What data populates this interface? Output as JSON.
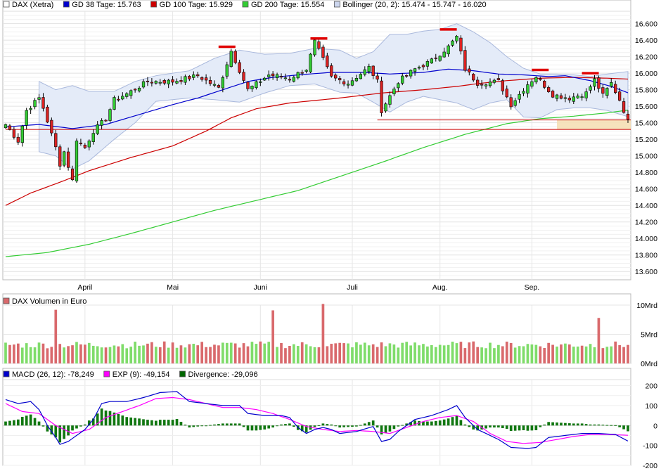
{
  "chart_data": [
    {
      "type": "candlestick",
      "panel": "price",
      "legend": [
        {
          "label": "DAX (Xetra)",
          "color": "#ffffff"
        },
        {
          "label": "GD 38 Tage: 15.763",
          "color": "#0000cc"
        },
        {
          "label": "GD 100 Tage: 15.929",
          "color": "#cc0000"
        },
        {
          "label": "GD 200 Tage: 15.554",
          "color": "#33cc33"
        },
        {
          "label": "Bollinger (20, 2): 15.474 - 15.747 - 16.020",
          "color": "#ccd6ee"
        }
      ],
      "ylim": [
        13500,
        16750
      ],
      "y_ticks": [
        "16.600",
        "16.400",
        "16.200",
        "16.000",
        "15.800",
        "15.600",
        "15.400",
        "15.200",
        "15.000",
        "14.800",
        "14.600",
        "14.400",
        "14.200",
        "14.000",
        "13.800",
        "13.600"
      ],
      "y_tick_values": [
        16600,
        16400,
        16200,
        16000,
        15800,
        15600,
        15400,
        15200,
        15000,
        14800,
        14600,
        14400,
        14200,
        14000,
        13800,
        13600
      ],
      "x_labels": [
        "April",
        "Mai",
        "Juni",
        "Juli",
        "Aug.",
        "Sep."
      ],
      "x_label_day_index": [
        19,
        40,
        61,
        83,
        104,
        126
      ],
      "n_days": 150,
      "close_anchors": [
        [
          0,
          15380
        ],
        [
          3,
          15180
        ],
        [
          5,
          15550
        ],
        [
          8,
          15700
        ],
        [
          9,
          15580
        ],
        [
          12,
          15100
        ],
        [
          13,
          14900
        ],
        [
          14,
          15050
        ],
        [
          16,
          14700
        ],
        [
          17,
          15200
        ],
        [
          19,
          15100
        ],
        [
          21,
          15300
        ],
        [
          24,
          15450
        ],
        [
          26,
          15680
        ],
        [
          29,
          15750
        ],
        [
          34,
          15900
        ],
        [
          40,
          15900
        ],
        [
          46,
          15970
        ],
        [
          51,
          15820
        ],
        [
          54,
          16270
        ],
        [
          58,
          15800
        ],
        [
          63,
          15980
        ],
        [
          68,
          15940
        ],
        [
          72,
          16050
        ],
        [
          74,
          16380
        ],
        [
          78,
          15950
        ],
        [
          82,
          15880
        ],
        [
          87,
          16070
        ],
        [
          89,
          15900
        ],
        [
          90,
          15550
        ],
        [
          94,
          15900
        ],
        [
          98,
          16050
        ],
        [
          102,
          16150
        ],
        [
          106,
          16320
        ],
        [
          108,
          16440
        ],
        [
          110,
          16050
        ],
        [
          113,
          15880
        ],
        [
          118,
          15900
        ],
        [
          121,
          15620
        ],
        [
          125,
          15870
        ],
        [
          127,
          15960
        ],
        [
          131,
          15740
        ],
        [
          135,
          15700
        ],
        [
          139,
          15760
        ],
        [
          141,
          15920
        ],
        [
          143,
          15730
        ],
        [
          145,
          15880
        ],
        [
          147,
          15680
        ],
        [
          149,
          15420
        ]
      ],
      "ma38_anchors": [
        [
          0,
          15350
        ],
        [
          8,
          15380
        ],
        [
          16,
          15330
        ],
        [
          24,
          15380
        ],
        [
          32,
          15500
        ],
        [
          40,
          15620
        ],
        [
          46,
          15700
        ],
        [
          52,
          15800
        ],
        [
          58,
          15900
        ],
        [
          64,
          15950
        ],
        [
          70,
          15980
        ],
        [
          78,
          16010
        ],
        [
          86,
          16010
        ],
        [
          92,
          15990
        ],
        [
          100,
          16010
        ],
        [
          106,
          16050
        ],
        [
          112,
          16030
        ],
        [
          118,
          15990
        ],
        [
          124,
          15980
        ],
        [
          130,
          15960
        ],
        [
          134,
          15970
        ],
        [
          140,
          15910
        ],
        [
          145,
          15840
        ],
        [
          149,
          15763
        ]
      ],
      "ma100_anchors": [
        [
          0,
          14400
        ],
        [
          6,
          14550
        ],
        [
          14,
          14700
        ],
        [
          20,
          14820
        ],
        [
          30,
          14980
        ],
        [
          40,
          15120
        ],
        [
          48,
          15300
        ],
        [
          54,
          15460
        ],
        [
          60,
          15570
        ],
        [
          68,
          15640
        ],
        [
          80,
          15700
        ],
        [
          90,
          15760
        ],
        [
          100,
          15800
        ],
        [
          108,
          15840
        ],
        [
          114,
          15880
        ],
        [
          120,
          15910
        ],
        [
          128,
          15940
        ],
        [
          136,
          15950
        ],
        [
          144,
          15940
        ],
        [
          149,
          15929
        ]
      ],
      "ma200_anchors": [
        [
          0,
          13780
        ],
        [
          10,
          13830
        ],
        [
          20,
          13930
        ],
        [
          30,
          14060
        ],
        [
          40,
          14200
        ],
        [
          50,
          14340
        ],
        [
          60,
          14460
        ],
        [
          70,
          14580
        ],
        [
          80,
          14750
        ],
        [
          90,
          14920
        ],
        [
          100,
          15100
        ],
        [
          110,
          15260
        ],
        [
          120,
          15390
        ],
        [
          128,
          15450
        ],
        [
          136,
          15480
        ],
        [
          144,
          15520
        ],
        [
          149,
          15554
        ]
      ],
      "bb_anchors": [
        [
          8,
          15900,
          15050
        ],
        [
          12,
          15800,
          15000
        ],
        [
          16,
          15850,
          14840
        ],
        [
          20,
          15780,
          14940
        ],
        [
          26,
          15780,
          15200
        ],
        [
          31,
          15900,
          15400
        ],
        [
          36,
          15970,
          15660
        ],
        [
          44,
          16030,
          15700
        ],
        [
          50,
          16180,
          15680
        ],
        [
          56,
          16280,
          15650
        ],
        [
          62,
          16230,
          15760
        ],
        [
          68,
          16240,
          15850
        ],
        [
          74,
          16300,
          15870
        ],
        [
          80,
          16280,
          15770
        ],
        [
          84,
          16180,
          15760
        ],
        [
          88,
          16260,
          15650
        ],
        [
          92,
          16470,
          15530
        ],
        [
          96,
          16470,
          15650
        ],
        [
          100,
          16510,
          15720
        ],
        [
          104,
          16530,
          15680
        ],
        [
          108,
          16600,
          15640
        ],
        [
          112,
          16500,
          15560
        ],
        [
          116,
          16370,
          15640
        ],
        [
          120,
          16200,
          15680
        ],
        [
          124,
          16060,
          15470
        ],
        [
          128,
          15990,
          15460
        ],
        [
          132,
          15990,
          15560
        ],
        [
          136,
          15980,
          15580
        ],
        [
          140,
          15960,
          15580
        ],
        [
          144,
          15990,
          15550
        ],
        [
          149,
          16020,
          15474
        ]
      ],
      "resistance_marks": [
        [
          53,
          16320
        ],
        [
          75,
          16420
        ],
        [
          106,
          16530
        ],
        [
          128,
          16040
        ],
        [
          140,
          16000
        ]
      ],
      "horizontal_lines": [
        [
          89,
          149,
          15435,
          "#cc0000"
        ],
        [
          0,
          149,
          15320,
          "#cc0000"
        ]
      ],
      "zone": [
        132,
        149,
        15320,
        15435,
        "#f5dfb5"
      ]
    },
    {
      "type": "bar",
      "panel": "volume",
      "legend": [
        {
          "label": "DAX Volumen in Euro",
          "color": "#d9696c"
        }
      ],
      "ylim": [
        0,
        10
      ],
      "y_ticks": [
        "10Mrd",
        "5Mrd",
        "0Mrd"
      ],
      "y_tick_values": [
        10,
        5,
        0
      ],
      "spikes": [
        [
          12,
          9.2
        ],
        [
          64,
          9.1
        ],
        [
          76,
          10.2
        ],
        [
          142,
          7.8
        ]
      ],
      "base_min": 2.6,
      "base_max": 3.8
    },
    {
      "type": "line",
      "panel": "macd",
      "legend": [
        {
          "label": "MACD (26, 12): -78,249",
          "color": "#0000cc"
        },
        {
          "label": "EXP (9): -49,154",
          "color": "#ff00ff"
        },
        {
          "label": "Divergence: -29,096",
          "color": "#006600"
        }
      ],
      "ylim": [
        -200,
        230
      ],
      "y_ticks": [
        "200",
        "100",
        "0",
        "-100",
        "-200"
      ],
      "y_tick_values": [
        200,
        100,
        0,
        -100,
        -200
      ],
      "macd_anchors": [
        [
          0,
          130
        ],
        [
          3,
          110
        ],
        [
          6,
          120
        ],
        [
          8,
          80
        ],
        [
          10,
          0
        ],
        [
          12,
          -60
        ],
        [
          13,
          -95
        ],
        [
          15,
          -80
        ],
        [
          17,
          -50
        ],
        [
          19,
          -20
        ],
        [
          21,
          30
        ],
        [
          23,
          110
        ],
        [
          25,
          120
        ],
        [
          29,
          120
        ],
        [
          33,
          140
        ],
        [
          37,
          165
        ],
        [
          41,
          170
        ],
        [
          44,
          120
        ],
        [
          48,
          110
        ],
        [
          52,
          100
        ],
        [
          56,
          100
        ],
        [
          58,
          60
        ],
        [
          62,
          50
        ],
        [
          66,
          50
        ],
        [
          68,
          40
        ],
        [
          70,
          -10
        ],
        [
          72,
          -40
        ],
        [
          74,
          -20
        ],
        [
          76,
          -10
        ],
        [
          78,
          -20
        ],
        [
          80,
          -40
        ],
        [
          84,
          -30
        ],
        [
          88,
          -5
        ],
        [
          90,
          -80
        ],
        [
          92,
          -70
        ],
        [
          94,
          -30
        ],
        [
          98,
          30
        ],
        [
          102,
          50
        ],
        [
          106,
          80
        ],
        [
          108,
          100
        ],
        [
          110,
          40
        ],
        [
          113,
          -20
        ],
        [
          118,
          -70
        ],
        [
          121,
          -110
        ],
        [
          125,
          -115
        ],
        [
          127,
          -110
        ],
        [
          130,
          -60
        ],
        [
          134,
          -50
        ],
        [
          138,
          -40
        ],
        [
          142,
          -40
        ],
        [
          146,
          -45
        ],
        [
          149,
          -78
        ]
      ],
      "exp_anchors": [
        [
          0,
          110
        ],
        [
          4,
          70
        ],
        [
          8,
          60
        ],
        [
          12,
          0
        ],
        [
          16,
          -40
        ],
        [
          20,
          -20
        ],
        [
          24,
          40
        ],
        [
          28,
          70
        ],
        [
          32,
          100
        ],
        [
          36,
          135
        ],
        [
          40,
          140
        ],
        [
          44,
          130
        ],
        [
          48,
          110
        ],
        [
          52,
          90
        ],
        [
          56,
          90
        ],
        [
          60,
          80
        ],
        [
          64,
          60
        ],
        [
          68,
          30
        ],
        [
          72,
          -5
        ],
        [
          76,
          -20
        ],
        [
          80,
          -30
        ],
        [
          84,
          -25
        ],
        [
          88,
          -30
        ],
        [
          92,
          -40
        ],
        [
          96,
          -10
        ],
        [
          100,
          20
        ],
        [
          104,
          40
        ],
        [
          108,
          50
        ],
        [
          112,
          20
        ],
        [
          116,
          -40
        ],
        [
          120,
          -80
        ],
        [
          124,
          -90
        ],
        [
          128,
          -85
        ],
        [
          132,
          -70
        ],
        [
          136,
          -55
        ],
        [
          140,
          -45
        ],
        [
          144,
          -45
        ],
        [
          149,
          -49
        ]
      ]
    }
  ]
}
